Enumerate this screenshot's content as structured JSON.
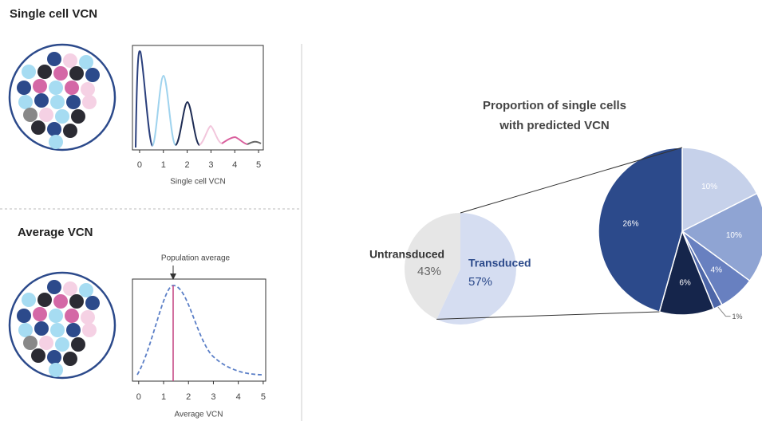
{
  "chart_data": [
    {
      "type": "line",
      "title": "Single cell VCN",
      "x_label": "Single cell VCN",
      "xlim": [
        -0.3,
        5.2
      ],
      "xticks": [
        0,
        1,
        2,
        3,
        4,
        5
      ]
    },
    {
      "type": "line",
      "title": "Average VCN",
      "x_label": "Average VCN",
      "annotation": "Population average",
      "xlim": [
        -0.25,
        5.1
      ],
      "xticks": [
        0,
        1,
        2,
        3,
        4,
        5
      ]
    },
    {
      "type": "pie",
      "title": "Proportion of single cells with predicted VCN",
      "categories": [
        "Untransduced",
        "Transduced"
      ],
      "values": [
        43,
        57
      ],
      "value_labels": [
        "43%",
        "57%"
      ],
      "colors": [
        "#e6e6e6",
        "#d5ddf1"
      ],
      "breakdown": {
        "values": [
          10,
          10,
          4,
          1,
          6,
          26
        ],
        "value_labels": [
          "10%",
          "10%",
          "4%",
          "1%",
          "6%",
          "26%"
        ],
        "colors": [
          "#c6d1ea",
          "#8fa4d3",
          "#6880c0",
          "#4d66a8",
          "#15254b",
          "#2c4a8b"
        ]
      }
    }
  ]
}
